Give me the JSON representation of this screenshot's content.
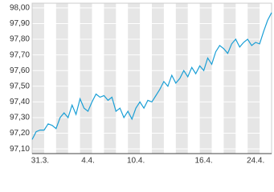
{
  "chart_data": {
    "type": "line",
    "categories": [
      null,
      null,
      "31.3.",
      null,
      null,
      null,
      null,
      null,
      null,
      null,
      null,
      null,
      null,
      null,
      "4.4.",
      null,
      null,
      null,
      null,
      null,
      null,
      null,
      null,
      null,
      null,
      null,
      "10.4.",
      null,
      null,
      null,
      null,
      null,
      null,
      null,
      null,
      null,
      null,
      null,
      null,
      null,
      null,
      null,
      null,
      "16.4.",
      null,
      null,
      null,
      null,
      null,
      null,
      null,
      null,
      null,
      null,
      null,
      null,
      "24.4.",
      null,
      null,
      null,
      null
    ],
    "values": [
      97.16,
      97.21,
      97.22,
      97.22,
      97.26,
      97.25,
      97.23,
      97.3,
      97.33,
      97.3,
      97.38,
      97.32,
      97.42,
      97.36,
      97.34,
      97.4,
      97.45,
      97.43,
      97.44,
      97.41,
      97.43,
      97.34,
      97.36,
      97.3,
      97.34,
      97.29,
      97.36,
      97.4,
      97.36,
      97.41,
      97.4,
      97.44,
      97.48,
      97.53,
      97.5,
      97.57,
      97.52,
      97.55,
      97.6,
      97.56,
      97.62,
      97.58,
      97.63,
      97.6,
      97.68,
      97.64,
      97.72,
      97.76,
      97.74,
      97.71,
      97.77,
      97.8,
      97.75,
      97.78,
      97.8,
      97.76,
      97.78,
      97.77,
      97.85,
      97.92,
      97.97
    ],
    "color": "#1a9fd6",
    "ylim": [
      97.07,
      98.03
    ],
    "yticks": [
      {
        "value": 97.1,
        "label": "97,10"
      },
      {
        "value": 97.2,
        "label": "97,20"
      },
      {
        "value": 97.3,
        "label": "97,30"
      },
      {
        "value": 97.4,
        "label": "97,40"
      },
      {
        "value": 97.5,
        "label": "97,50"
      },
      {
        "value": 97.6,
        "label": "97,60"
      },
      {
        "value": 97.7,
        "label": "97,70"
      },
      {
        "value": 97.8,
        "label": "97,80"
      },
      {
        "value": 97.9,
        "label": "97,90"
      },
      {
        "value": 98.0,
        "label": "98,00"
      }
    ],
    "grid": true
  }
}
